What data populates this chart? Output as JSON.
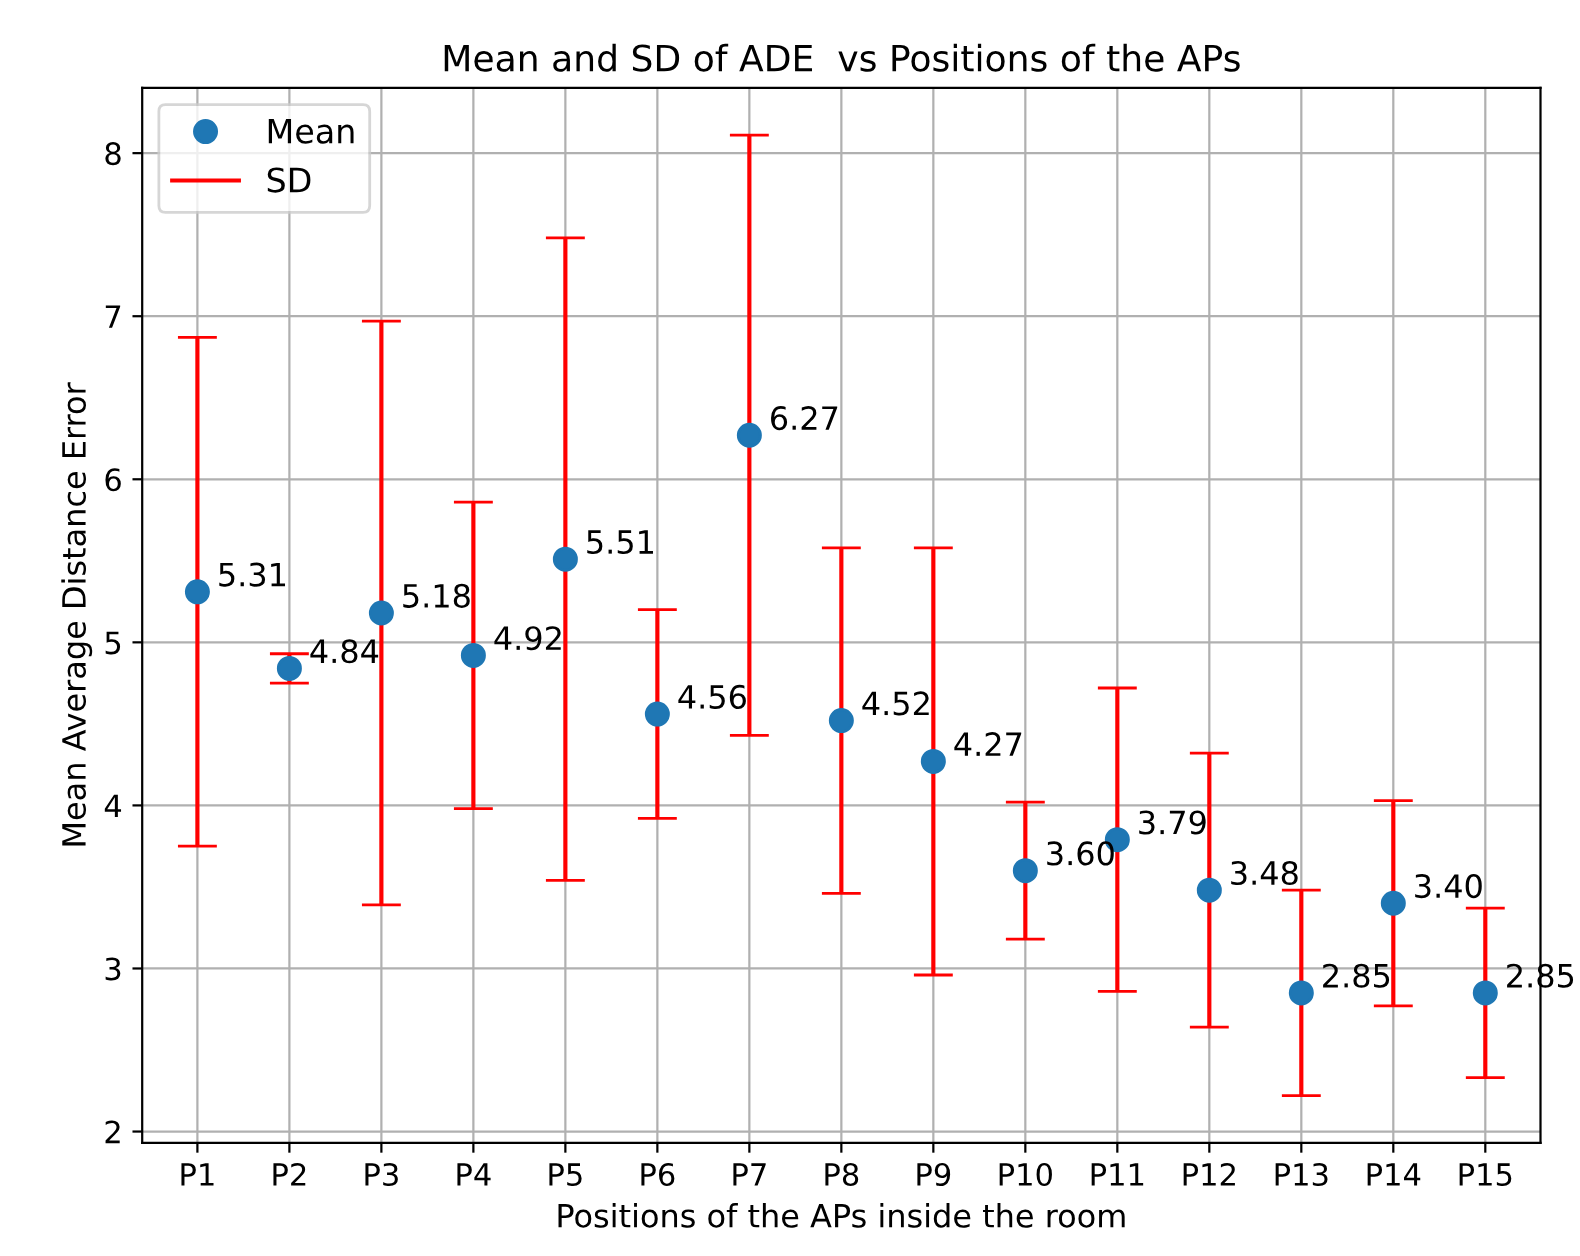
{
  "chart_data": {
    "type": "scatter",
    "title": "Mean and SD of ADE  vs Positions of the APs",
    "xlabel": "Positions of the APs inside the room",
    "ylabel": "Mean Average Distance Error",
    "categories": [
      "P1",
      "P2",
      "P3",
      "P4",
      "P5",
      "P6",
      "P7",
      "P8",
      "P9",
      "P10",
      "P11",
      "P12",
      "P13",
      "P14",
      "P15"
    ],
    "series": [
      {
        "name": "Mean",
        "marker": "circle",
        "color": "#1f77b4",
        "values": [
          5.31,
          4.84,
          5.18,
          4.92,
          5.51,
          4.56,
          6.27,
          4.52,
          4.27,
          3.6,
          3.79,
          3.48,
          2.85,
          3.4,
          2.85
        ],
        "value_labels": [
          "5.31",
          "4.84",
          "5.18",
          "4.92",
          "5.51",
          "4.56",
          "6.27",
          "4.52",
          "4.27",
          "3.60",
          "3.79",
          "3.48",
          "2.85",
          "3.40",
          "2.85"
        ],
        "errors": [
          1.56,
          0.09,
          1.79,
          0.94,
          1.97,
          0.64,
          1.84,
          1.06,
          1.31,
          0.42,
          0.93,
          0.84,
          0.63,
          0.63,
          0.52
        ]
      },
      {
        "name": "SD",
        "type": "line",
        "color": "#ff0000",
        "values": [
          null,
          null,
          null,
          null,
          null,
          null,
          null,
          null,
          null,
          null,
          null,
          null,
          null,
          null,
          null
        ]
      }
    ],
    "ylim": [
      1.93,
      8.4
    ],
    "yticks": [
      2,
      3,
      4,
      5,
      6,
      7,
      8
    ],
    "grid": true,
    "legend": "top left"
  }
}
